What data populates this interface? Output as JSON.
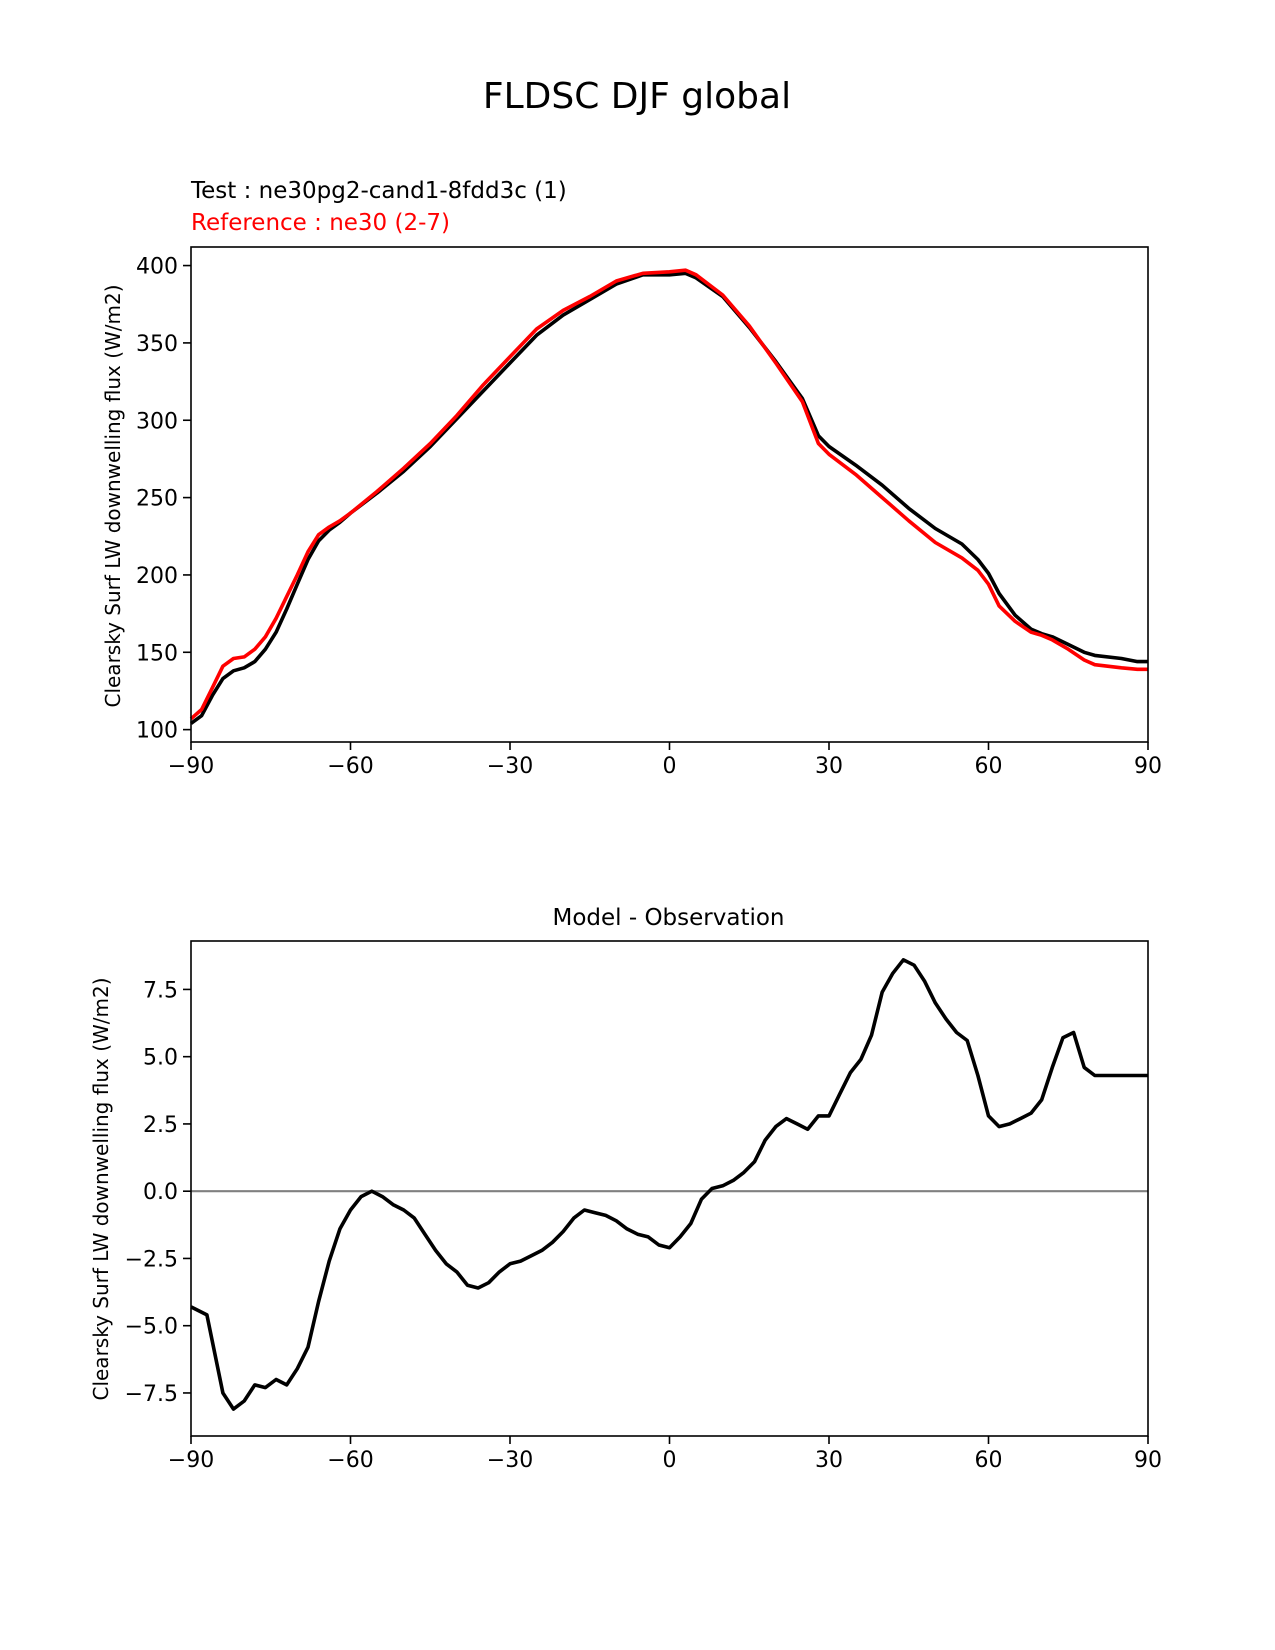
{
  "figure": {
    "title": "FLDSC DJF global"
  },
  "chart_data": [
    {
      "type": "line",
      "test_label": "Test : ne30pg2-cand1-8fdd3c (1)",
      "reference_label": "Reference : ne30 (2-7)",
      "xlabel": "",
      "ylabel": "Clearsky Surf LW downwelling flux (W/m2)",
      "xlim": [
        -90,
        90
      ],
      "ylim": [
        92,
        412
      ],
      "xticks": [
        -90,
        -60,
        -30,
        0,
        30,
        60,
        90
      ],
      "xtick_labels": [
        "−90",
        "−60",
        "−30",
        "0",
        "30",
        "60",
        "90"
      ],
      "yticks": [
        100,
        150,
        200,
        250,
        300,
        350,
        400
      ],
      "ytick_labels": [
        "100",
        "150",
        "200",
        "250",
        "300",
        "350",
        "400"
      ],
      "x": [
        -90,
        -88,
        -86,
        -84,
        -82,
        -80,
        -78,
        -76,
        -74,
        -72,
        -70,
        -68,
        -66,
        -64,
        -62,
        -60,
        -55,
        -50,
        -45,
        -40,
        -35,
        -30,
        -25,
        -20,
        -15,
        -10,
        -5,
        0,
        3,
        5,
        10,
        15,
        20,
        25,
        28,
        30,
        35,
        40,
        45,
        50,
        55,
        58,
        60,
        62,
        65,
        68,
        70,
        72,
        75,
        78,
        80,
        85,
        88,
        90
      ],
      "series": [
        {
          "role": "test",
          "color": "#000000",
          "values": [
            104,
            109,
            122,
            133,
            138,
            140,
            144,
            152,
            163,
            178,
            194,
            210,
            222,
            229,
            234,
            240,
            253,
            267,
            283,
            301,
            319,
            337,
            355,
            368,
            378,
            388,
            394,
            394,
            395,
            392,
            380,
            360,
            338,
            314,
            290,
            283,
            271,
            258,
            243,
            230,
            220,
            210,
            201,
            188,
            174,
            165,
            162,
            160,
            155,
            150,
            148,
            146,
            144,
            144
          ]
        },
        {
          "role": "reference",
          "color": "#ff0000",
          "values": [
            107,
            113,
            127,
            141,
            146,
            147,
            152,
            160,
            172,
            186,
            200,
            215,
            226,
            231,
            235,
            240,
            254,
            269,
            285,
            303,
            323,
            341,
            359,
            371,
            380,
            390,
            395,
            396,
            397,
            394,
            381,
            361,
            337,
            312,
            285,
            278,
            265,
            250,
            235,
            221,
            211,
            203,
            194,
            180,
            170,
            163,
            161,
            158,
            152,
            145,
            142,
            140,
            139,
            139
          ]
        }
      ]
    },
    {
      "type": "line",
      "title": "Model - Observation",
      "xlabel": "",
      "ylabel": "Clearsky Surf LW downwelling flux (W/m2)",
      "xlim": [
        -90,
        90
      ],
      "ylim": [
        -9.1,
        9.3
      ],
      "xticks": [
        -90,
        -60,
        -30,
        0,
        30,
        60,
        90
      ],
      "xtick_labels": [
        "−90",
        "−60",
        "−30",
        "0",
        "30",
        "60",
        "90"
      ],
      "yticks": [
        -7.5,
        -5.0,
        -2.5,
        0.0,
        2.5,
        5.0,
        7.5
      ],
      "ytick_labels": [
        "−7.5",
        "−5.0",
        "−2.5",
        "0.0",
        "2.5",
        "5.0",
        "7.5"
      ],
      "zero_line_color": "#808080",
      "x": [
        -90,
        -87,
        -84,
        -82,
        -80,
        -78,
        -76,
        -74,
        -72,
        -70,
        -68,
        -66,
        -64,
        -62,
        -60,
        -58,
        -56,
        -54,
        -52,
        -50,
        -48,
        -46,
        -44,
        -42,
        -40,
        -38,
        -36,
        -34,
        -32,
        -30,
        -28,
        -26,
        -24,
        -22,
        -20,
        -18,
        -16,
        -14,
        -12,
        -10,
        -8,
        -6,
        -4,
        -2,
        0,
        2,
        4,
        6,
        8,
        10,
        12,
        14,
        16,
        18,
        20,
        22,
        24,
        26,
        28,
        30,
        32,
        34,
        36,
        38,
        40,
        42,
        44,
        46,
        48,
        50,
        52,
        54,
        56,
        58,
        60,
        62,
        64,
        66,
        68,
        70,
        72,
        74,
        76,
        78,
        80,
        82,
        84,
        86,
        88,
        90
      ],
      "series": [
        {
          "role": "difference",
          "color": "#000000",
          "values": [
            -4.3,
            -4.6,
            -7.5,
            -8.1,
            -7.8,
            -7.2,
            -7.3,
            -7.0,
            -7.2,
            -6.6,
            -5.8,
            -4.1,
            -2.6,
            -1.4,
            -0.7,
            -0.2,
            0.0,
            -0.2,
            -0.5,
            -0.7,
            -1.0,
            -1.6,
            -2.2,
            -2.7,
            -3.0,
            -3.5,
            -3.6,
            -3.4,
            -3.0,
            -2.7,
            -2.6,
            -2.4,
            -2.2,
            -1.9,
            -1.5,
            -1.0,
            -0.7,
            -0.8,
            -0.9,
            -1.1,
            -1.4,
            -1.6,
            -1.7,
            -2.0,
            -2.1,
            -1.7,
            -1.2,
            -0.3,
            0.1,
            0.2,
            0.4,
            0.7,
            1.1,
            1.9,
            2.4,
            2.7,
            2.5,
            2.3,
            2.8,
            2.8,
            3.6,
            4.4,
            4.9,
            5.8,
            7.4,
            8.1,
            8.6,
            8.4,
            7.8,
            7.0,
            6.4,
            5.9,
            5.6,
            4.3,
            2.8,
            2.4,
            2.5,
            2.7,
            2.9,
            3.4,
            4.6,
            5.7,
            5.9,
            4.6,
            4.3,
            4.3,
            4.3,
            4.3,
            4.3,
            4.3
          ]
        }
      ]
    }
  ]
}
